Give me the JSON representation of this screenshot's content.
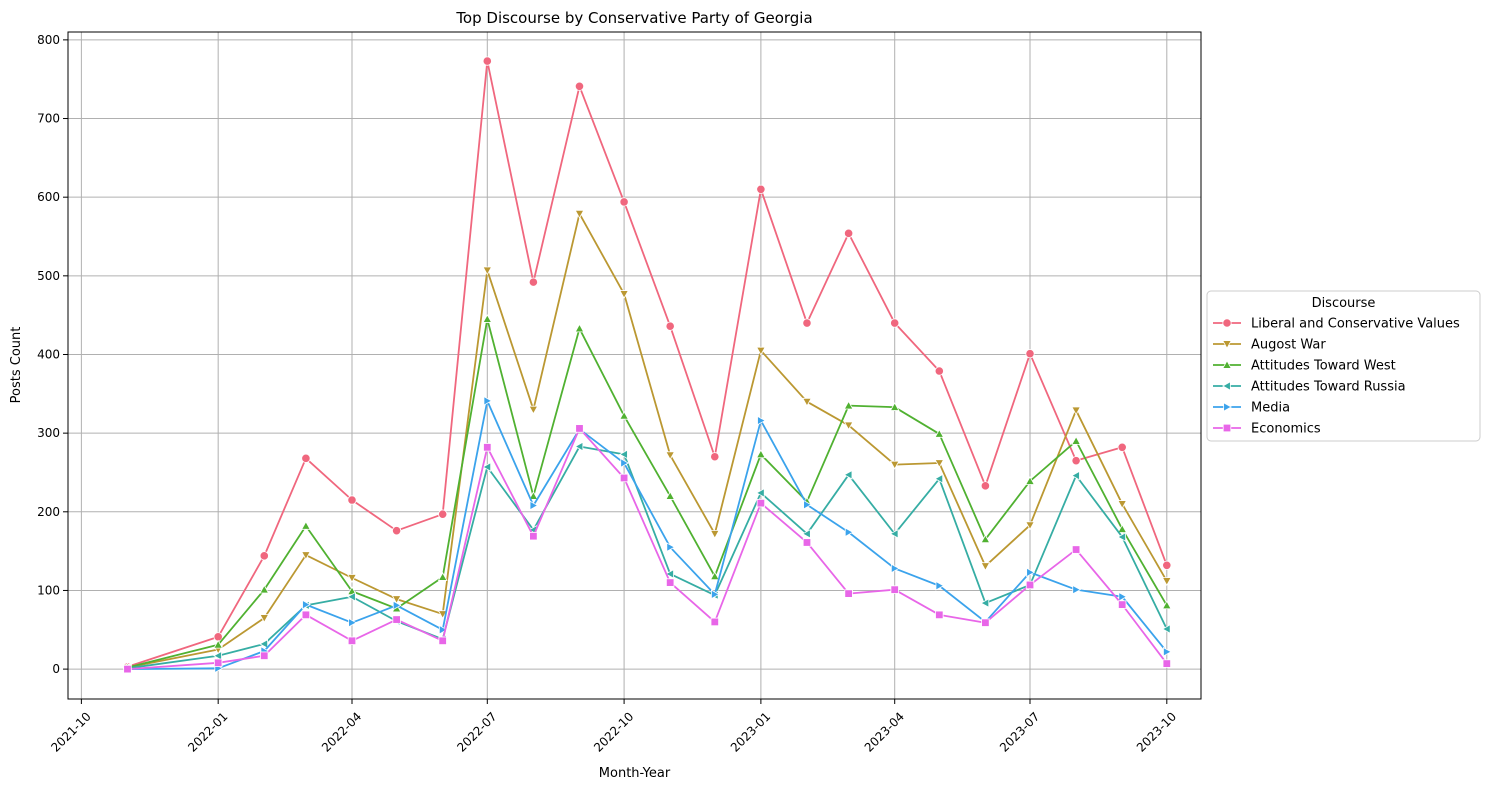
{
  "chart_data": {
    "type": "line",
    "title": "Top Discourse by Conservative Party of Georgia",
    "xlabel": "Month-Year",
    "ylabel": "Posts Count",
    "x_ticks": [
      "2021-10",
      "2022-01",
      "2022-04",
      "2022-07",
      "2022-10",
      "2023-01",
      "2023-04",
      "2023-07",
      "2023-10"
    ],
    "y_ticks": [
      0,
      100,
      200,
      300,
      400,
      500,
      600,
      700,
      800
    ],
    "xlim": [
      "2021-09-22",
      "2023-10-24"
    ],
    "ylim": [
      -38,
      810
    ],
    "grid": true,
    "legend": {
      "title": "Discourse",
      "placement": "outside right"
    },
    "x": [
      "2021-11-01",
      "2022-01-01",
      "2022-02-01",
      "2022-03-01",
      "2022-04-01",
      "2022-05-01",
      "2022-06-01",
      "2022-07-01",
      "2022-08-01",
      "2022-09-01",
      "2022-10-01",
      "2022-11-01",
      "2022-12-01",
      "2023-01-01",
      "2023-02-01",
      "2023-03-01",
      "2023-04-01",
      "2023-05-01",
      "2023-06-01",
      "2023-07-01",
      "2023-08-01",
      "2023-09-01",
      "2023-10-01"
    ],
    "series": [
      {
        "name": "Liberal and Conservative Values",
        "color": "#f0677e",
        "marker": "circle",
        "values": [
          3,
          41,
          144,
          268,
          215,
          176,
          197,
          773,
          492,
          741,
          594,
          436,
          270,
          610,
          440,
          554,
          440,
          379,
          233,
          401,
          265,
          282,
          132
        ]
      },
      {
        "name": "Augost War",
        "color": "#bb9832",
        "marker": "triangle-down",
        "values": [
          2,
          25,
          65,
          145,
          116,
          89,
          70,
          507,
          330,
          579,
          477,
          272,
          172,
          405,
          340,
          310,
          260,
          262,
          131,
          183,
          329,
          210,
          112
        ]
      },
      {
        "name": "Attitudes Toward West",
        "color": "#50b131",
        "marker": "triangle-up",
        "values": [
          2,
          31,
          101,
          182,
          99,
          77,
          117,
          445,
          220,
          433,
          322,
          220,
          118,
          273,
          213,
          335,
          333,
          299,
          165,
          239,
          290,
          178,
          81
        ]
      },
      {
        "name": "Attitudes Toward Russia",
        "color": "#36ada4",
        "marker": "triangle-left",
        "values": [
          1,
          17,
          32,
          81,
          92,
          61,
          38,
          257,
          177,
          283,
          273,
          121,
          94,
          224,
          172,
          247,
          172,
          242,
          84,
          107,
          246,
          168,
          51
        ]
      },
      {
        "name": "Media",
        "color": "#3ba3ec",
        "marker": "triangle-right",
        "values": [
          0,
          1,
          23,
          82,
          59,
          81,
          50,
          341,
          208,
          305,
          262,
          155,
          95,
          316,
          209,
          174,
          128,
          106,
          60,
          123,
          101,
          92,
          22
        ]
      },
      {
        "name": "Economics",
        "color": "#e866e8",
        "marker": "square",
        "values": [
          0,
          8,
          17,
          69,
          36,
          63,
          36,
          282,
          169,
          306,
          243,
          110,
          60,
          211,
          161,
          96,
          101,
          69,
          59,
          107,
          152,
          82,
          7
        ]
      }
    ]
  }
}
